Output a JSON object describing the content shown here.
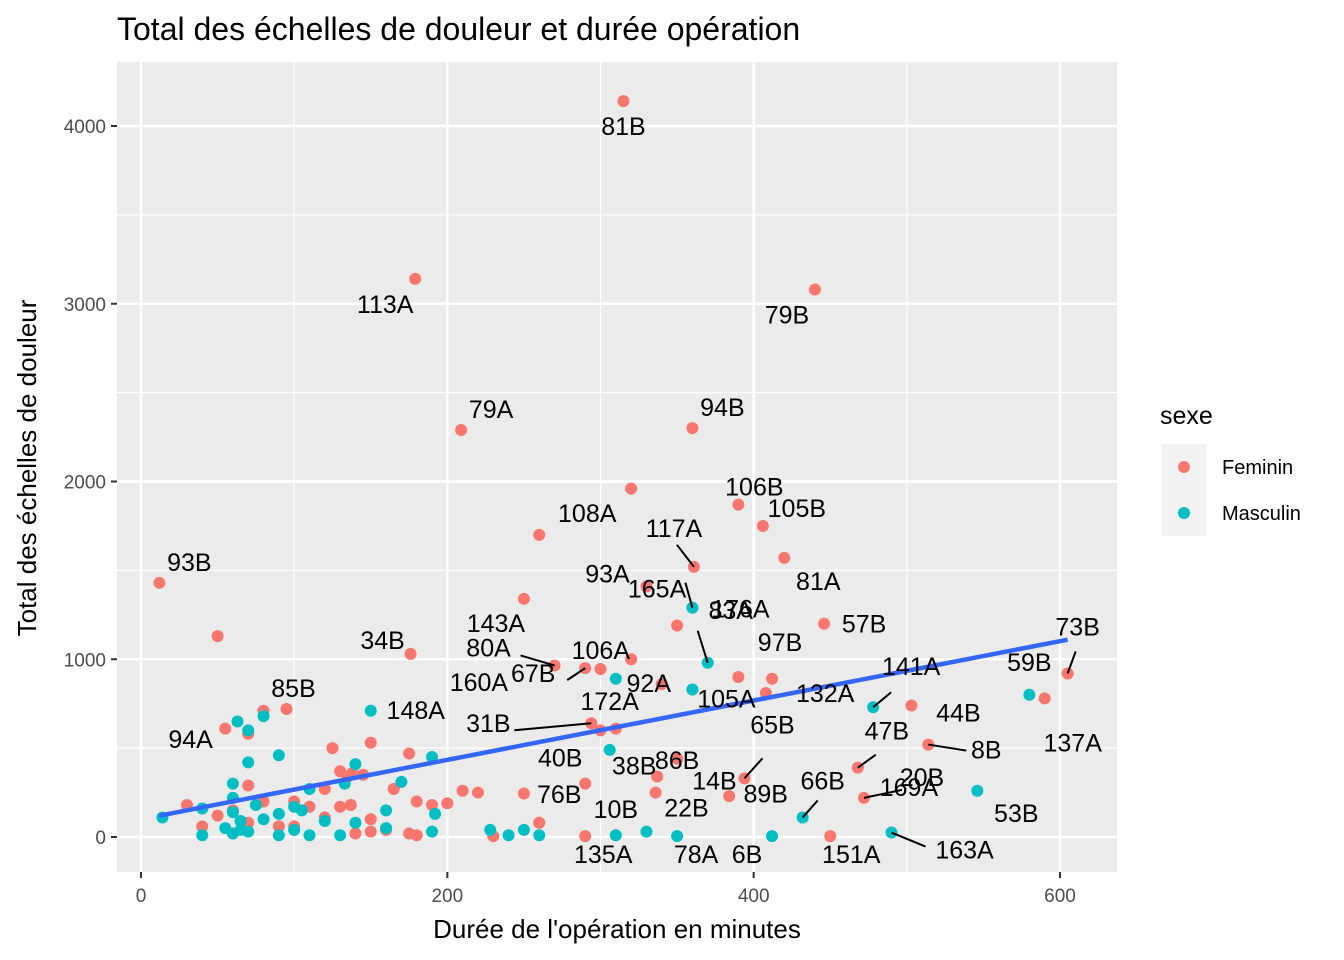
{
  "chart_data": {
    "type": "scatter",
    "title": "Total des échelles de douleur et durée opération",
    "xlabel": "Durée de l'opération en minutes",
    "ylabel": "Total des échelles de douleur",
    "xlim": [
      -10,
      630
    ],
    "ylim": [
      -200,
      4320
    ],
    "x_ticks": [
      0,
      200,
      400,
      600
    ],
    "y_ticks": [
      0,
      1000,
      2000,
      3000,
      4000
    ],
    "grid": true,
    "legend": {
      "title": "sexe",
      "position": "right",
      "entries": [
        {
          "name": "Feminin",
          "color": "#F8766D"
        },
        {
          "name": "Masculin",
          "color": "#00BFC4"
        }
      ]
    },
    "colors": {
      "Feminin": "#F8766D",
      "Masculin": "#00BFC4",
      "trend": "#3366FF"
    },
    "trend_line": {
      "x": [
        12,
        605
      ],
      "y": [
        120,
        1110
      ]
    },
    "series": [
      {
        "name": "Feminin",
        "points": [
          {
            "x": 315,
            "y": 4140,
            "label": "81B"
          },
          {
            "x": 179,
            "y": 3140,
            "label": "113A"
          },
          {
            "x": 440,
            "y": 3080,
            "label": "79B"
          },
          {
            "x": 209,
            "y": 2290,
            "label": "79A"
          },
          {
            "x": 360,
            "y": 2300,
            "label": "94B"
          },
          {
            "x": 320,
            "y": 1960
          },
          {
            "x": 390,
            "y": 1870,
            "label": "106B"
          },
          {
            "x": 406,
            "y": 1750,
            "label": "105B"
          },
          {
            "x": 260,
            "y": 1700,
            "label": "108A"
          },
          {
            "x": 420,
            "y": 1570,
            "label": "81A"
          },
          {
            "x": 361,
            "y": 1520,
            "label": "117A"
          },
          {
            "x": 12,
            "y": 1430,
            "label": "93B"
          },
          {
            "x": 330,
            "y": 1410,
            "label": "93A"
          },
          {
            "x": 250,
            "y": 1340,
            "label": "143A"
          },
          {
            "x": 446,
            "y": 1200,
            "label": "57B"
          },
          {
            "x": 350,
            "y": 1190,
            "label": "165A"
          },
          {
            "x": 50,
            "y": 1130,
            "label": "94A"
          },
          {
            "x": 176,
            "y": 1030,
            "label": "34B"
          },
          {
            "x": 320,
            "y": 1000
          },
          {
            "x": 270,
            "y": 965,
            "label": "80A"
          },
          {
            "x": 290,
            "y": 950,
            "label": "67B"
          },
          {
            "x": 300,
            "y": 945
          },
          {
            "x": 390,
            "y": 900
          },
          {
            "x": 605,
            "y": 920,
            "label": "73B"
          },
          {
            "x": 412,
            "y": 890,
            "label": "97B"
          },
          {
            "x": 340,
            "y": 860,
            "label": "92A"
          },
          {
            "x": 408,
            "y": 810
          },
          {
            "x": 590,
            "y": 780,
            "label": "137A"
          },
          {
            "x": 503,
            "y": 740,
            "label": "44B"
          },
          {
            "x": 95,
            "y": 720
          },
          {
            "x": 80,
            "y": 710,
            "label": "85B"
          },
          {
            "x": 294,
            "y": 640,
            "label": "31B"
          },
          {
            "x": 300,
            "y": 600
          },
          {
            "x": 310,
            "y": 610
          },
          {
            "x": 55,
            "y": 610
          },
          {
            "x": 70,
            "y": 580
          },
          {
            "x": 514,
            "y": 520,
            "label": "8B"
          },
          {
            "x": 125,
            "y": 500
          },
          {
            "x": 150,
            "y": 530
          },
          {
            "x": 175,
            "y": 470
          },
          {
            "x": 350,
            "y": 440,
            "label": "86B"
          },
          {
            "x": 468,
            "y": 390,
            "label": "47B"
          },
          {
            "x": 130,
            "y": 370
          },
          {
            "x": 138,
            "y": 360
          },
          {
            "x": 145,
            "y": 350
          },
          {
            "x": 135,
            "y": 340
          },
          {
            "x": 337,
            "y": 340,
            "label": "38B"
          },
          {
            "x": 394,
            "y": 330,
            "label": "65B"
          },
          {
            "x": 290,
            "y": 300,
            "label": "40B"
          },
          {
            "x": 70,
            "y": 290
          },
          {
            "x": 165,
            "y": 270
          },
          {
            "x": 120,
            "y": 270
          },
          {
            "x": 210,
            "y": 260
          },
          {
            "x": 220,
            "y": 250
          },
          {
            "x": 250,
            "y": 245
          },
          {
            "x": 336,
            "y": 250
          },
          {
            "x": 384,
            "y": 230
          },
          {
            "x": 472,
            "y": 220,
            "label": "20B"
          },
          {
            "x": 100,
            "y": 200
          },
          {
            "x": 80,
            "y": 200
          },
          {
            "x": 180,
            "y": 200
          },
          {
            "x": 190,
            "y": 180
          },
          {
            "x": 200,
            "y": 190
          },
          {
            "x": 30,
            "y": 180
          },
          {
            "x": 110,
            "y": 170
          },
          {
            "x": 130,
            "y": 170
          },
          {
            "x": 137,
            "y": 180
          },
          {
            "x": 60,
            "y": 150
          },
          {
            "x": 50,
            "y": 120
          },
          {
            "x": 120,
            "y": 110
          },
          {
            "x": 150,
            "y": 100
          },
          {
            "x": 70,
            "y": 80
          },
          {
            "x": 90,
            "y": 60
          },
          {
            "x": 100,
            "y": 60
          },
          {
            "x": 40,
            "y": 60
          },
          {
            "x": 260,
            "y": 80,
            "label": "76B"
          },
          {
            "x": 150,
            "y": 30
          },
          {
            "x": 160,
            "y": 40
          },
          {
            "x": 140,
            "y": 20
          },
          {
            "x": 175,
            "y": 20
          },
          {
            "x": 180,
            "y": 10
          },
          {
            "x": 230,
            "y": 5
          },
          {
            "x": 290,
            "y": 5,
            "label": "135A"
          },
          {
            "x": 450,
            "y": 5,
            "label": "151A"
          }
        ]
      },
      {
        "name": "Masculin",
        "points": [
          {
            "x": 360,
            "y": 1290,
            "label": "176A"
          },
          {
            "x": 370,
            "y": 980,
            "label": "83A"
          },
          {
            "x": 310,
            "y": 890,
            "label": "106A"
          },
          {
            "x": 360,
            "y": 830,
            "label": "105A"
          },
          {
            "x": 580,
            "y": 800,
            "label": "59B"
          },
          {
            "x": 478,
            "y": 730,
            "label": "141A"
          },
          {
            "x": 150,
            "y": 710,
            "label": "148A"
          },
          {
            "x": 80,
            "y": 680
          },
          {
            "x": 63,
            "y": 650
          },
          {
            "x": 70,
            "y": 600
          },
          {
            "x": 306,
            "y": 490,
            "label": "172A"
          },
          {
            "x": 90,
            "y": 460
          },
          {
            "x": 190,
            "y": 450
          },
          {
            "x": 70,
            "y": 420
          },
          {
            "x": 140,
            "y": 410
          },
          {
            "x": 170,
            "y": 310
          },
          {
            "x": 133,
            "y": 300
          },
          {
            "x": 60,
            "y": 300
          },
          {
            "x": 110,
            "y": 270
          },
          {
            "x": 546,
            "y": 260,
            "label": "53B"
          },
          {
            "x": 60,
            "y": 220
          },
          {
            "x": 75,
            "y": 180
          },
          {
            "x": 100,
            "y": 170
          },
          {
            "x": 105,
            "y": 150
          },
          {
            "x": 160,
            "y": 150
          },
          {
            "x": 40,
            "y": 160
          },
          {
            "x": 60,
            "y": 140
          },
          {
            "x": 192,
            "y": 130
          },
          {
            "x": 14,
            "y": 110
          },
          {
            "x": 80,
            "y": 100
          },
          {
            "x": 65,
            "y": 90
          },
          {
            "x": 90,
            "y": 130
          },
          {
            "x": 120,
            "y": 90
          },
          {
            "x": 140,
            "y": 80
          },
          {
            "x": 432,
            "y": 110,
            "label": "66B"
          },
          {
            "x": 55,
            "y": 50
          },
          {
            "x": 65,
            "y": 40
          },
          {
            "x": 100,
            "y": 40
          },
          {
            "x": 160,
            "y": 50
          },
          {
            "x": 228,
            "y": 40
          },
          {
            "x": 250,
            "y": 40
          },
          {
            "x": 60,
            "y": 20
          },
          {
            "x": 70,
            "y": 30
          },
          {
            "x": 40,
            "y": 10
          },
          {
            "x": 90,
            "y": 10
          },
          {
            "x": 110,
            "y": 10
          },
          {
            "x": 130,
            "y": 10
          },
          {
            "x": 190,
            "y": 30
          },
          {
            "x": 240,
            "y": 10
          },
          {
            "x": 260,
            "y": 10
          },
          {
            "x": 310,
            "y": 10,
            "label": "10B"
          },
          {
            "x": 330,
            "y": 30,
            "label": "22B"
          },
          {
            "x": 350,
            "y": 5,
            "label": "78A"
          },
          {
            "x": 412,
            "y": 5,
            "label": "6B"
          },
          {
            "x": 490,
            "y": 25,
            "label": "163A"
          }
        ]
      }
    ],
    "annotations": [
      {
        "text": "81B",
        "x": 315,
        "y": 4140
      },
      {
        "text": "113A",
        "x": 179,
        "y": 3140
      },
      {
        "text": "79B",
        "x": 440,
        "y": 3080
      },
      {
        "text": "79A",
        "x": 209,
        "y": 2290
      },
      {
        "text": "94B",
        "x": 360,
        "y": 2300
      },
      {
        "text": "106B",
        "x": 390,
        "y": 1870
      },
      {
        "text": "105B",
        "x": 406,
        "y": 1750
      },
      {
        "text": "108A",
        "x": 260,
        "y": 1700
      },
      {
        "text": "117A",
        "x": 361,
        "y": 1520
      },
      {
        "text": "176A",
        "x": 360,
        "y": 1290
      },
      {
        "text": "81A",
        "x": 420,
        "y": 1570
      },
      {
        "text": "93B",
        "x": 12,
        "y": 1430
      },
      {
        "text": "143A",
        "x": 250,
        "y": 1340
      },
      {
        "text": "93A",
        "x": 330,
        "y": 1410
      },
      {
        "text": "160A",
        "x": 250,
        "y": 1340
      },
      {
        "text": "83A",
        "x": 370,
        "y": 980
      },
      {
        "text": "57B",
        "x": 446,
        "y": 1200
      },
      {
        "text": "73B",
        "x": 605,
        "y": 920
      },
      {
        "text": "34B",
        "x": 176,
        "y": 1030
      },
      {
        "text": "80A",
        "x": 270,
        "y": 965
      },
      {
        "text": "106A",
        "x": 310,
        "y": 890
      },
      {
        "text": "165A",
        "x": 350,
        "y": 1190
      },
      {
        "text": "97B",
        "x": 412,
        "y": 890
      },
      {
        "text": "141A",
        "x": 478,
        "y": 730
      },
      {
        "text": "59B",
        "x": 580,
        "y": 800
      },
      {
        "text": "94A",
        "x": 50,
        "y": 1130
      },
      {
        "text": "92A",
        "x": 340,
        "y": 860
      },
      {
        "text": "85B",
        "x": 80,
        "y": 710
      },
      {
        "text": "148A",
        "x": 150,
        "y": 710
      },
      {
        "text": "67B",
        "x": 290,
        "y": 950
      },
      {
        "text": "132A",
        "x": 478,
        "y": 730
      },
      {
        "text": "105A",
        "x": 360,
        "y": 830
      },
      {
        "text": "172A",
        "x": 306,
        "y": 490
      },
      {
        "text": "44B",
        "x": 503,
        "y": 740
      },
      {
        "text": "137A",
        "x": 590,
        "y": 780
      },
      {
        "text": "31B",
        "x": 294,
        "y": 640
      },
      {
        "text": "86B",
        "x": 350,
        "y": 440
      },
      {
        "text": "65B",
        "x": 394,
        "y": 330
      },
      {
        "text": "47B",
        "x": 468,
        "y": 390
      },
      {
        "text": "8B",
        "x": 514,
        "y": 520
      },
      {
        "text": "40B",
        "x": 290,
        "y": 300
      },
      {
        "text": "38B",
        "x": 337,
        "y": 340
      },
      {
        "text": "14B",
        "x": 394,
        "y": 330
      },
      {
        "text": "66B",
        "x": 432,
        "y": 110
      },
      {
        "text": "20B",
        "x": 472,
        "y": 220
      },
      {
        "text": "53B",
        "x": 546,
        "y": 260
      },
      {
        "text": "76B",
        "x": 260,
        "y": 80
      },
      {
        "text": "10B",
        "x": 310,
        "y": 10
      },
      {
        "text": "22B",
        "x": 330,
        "y": 30
      },
      {
        "text": "89B",
        "x": 432,
        "y": 110
      },
      {
        "text": "169A",
        "x": 472,
        "y": 220
      },
      {
        "text": "135A",
        "x": 290,
        "y": 5
      },
      {
        "text": "78A",
        "x": 350,
        "y": 5
      },
      {
        "text": "6B",
        "x": 412,
        "y": 5
      },
      {
        "text": "151A",
        "x": 450,
        "y": 5
      },
      {
        "text": "163A",
        "x": 490,
        "y": 25
      }
    ]
  }
}
